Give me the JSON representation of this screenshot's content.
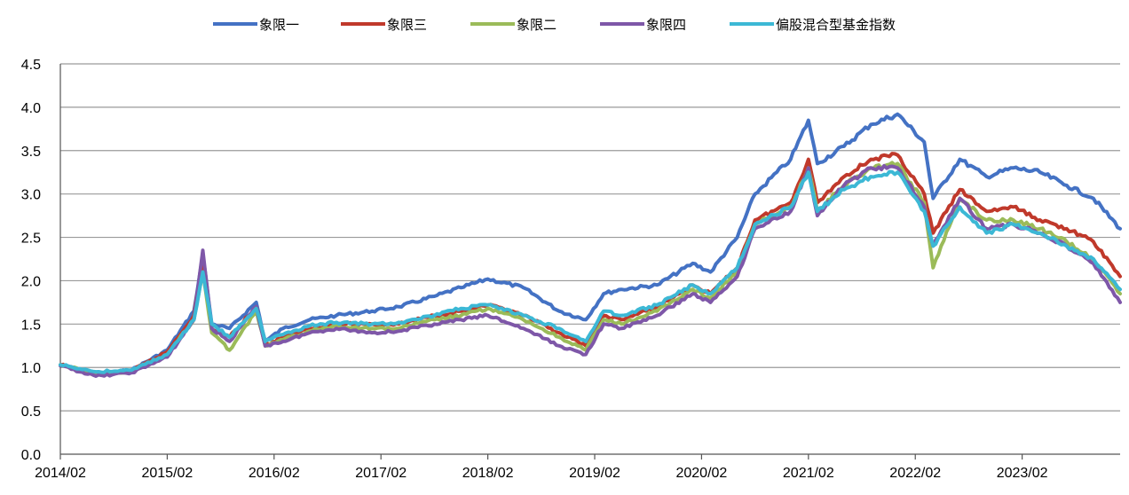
{
  "chart_data": {
    "type": "line",
    "title": "",
    "xlabel": "",
    "ylabel": "",
    "ylim": [
      0.0,
      4.5
    ],
    "yticks": [
      "0.0",
      "0.5",
      "1.0",
      "1.5",
      "2.0",
      "2.5",
      "3.0",
      "3.5",
      "4.0",
      "4.5"
    ],
    "xticks": [
      "2014/02",
      "2015/02",
      "2016/02",
      "2017/02",
      "2018/02",
      "2019/02",
      "2020/02",
      "2021/02",
      "2022/02",
      "2023/02"
    ],
    "xlim": [
      "2014/02",
      "2024/01"
    ],
    "grid": "horizontal",
    "legend_position": "top-center",
    "series": [
      {
        "name": "象限一",
        "color": "#4472C4",
        "points": [
          [
            "2014/02",
            1.03
          ],
          [
            "2014/06",
            0.92
          ],
          [
            "2014/10",
            0.97
          ],
          [
            "2015/02",
            1.2
          ],
          [
            "2015/05",
            1.65
          ],
          [
            "2015/06",
            2.3
          ],
          [
            "2015/07",
            1.5
          ],
          [
            "2015/09",
            1.45
          ],
          [
            "2015/12",
            1.75
          ],
          [
            "2016/01",
            1.3
          ],
          [
            "2016/03",
            1.45
          ],
          [
            "2016/06",
            1.55
          ],
          [
            "2016/09",
            1.6
          ],
          [
            "2017/01",
            1.65
          ],
          [
            "2017/04",
            1.7
          ],
          [
            "2017/08",
            1.82
          ],
          [
            "2017/11",
            1.92
          ],
          [
            "2018/02",
            2.02
          ],
          [
            "2018/06",
            1.92
          ],
          [
            "2018/10",
            1.65
          ],
          [
            "2019/01",
            1.55
          ],
          [
            "2019/03",
            1.85
          ],
          [
            "2019/05",
            1.9
          ],
          [
            "2019/09",
            1.95
          ],
          [
            "2020/01",
            2.2
          ],
          [
            "2020/03",
            2.1
          ],
          [
            "2020/06",
            2.5
          ],
          [
            "2020/08",
            3.0
          ],
          [
            "2020/12",
            3.4
          ],
          [
            "2021/02",
            3.85
          ],
          [
            "2021/03",
            3.35
          ],
          [
            "2021/06",
            3.55
          ],
          [
            "2021/09",
            3.8
          ],
          [
            "2021/12",
            3.92
          ],
          [
            "2022/03",
            3.6
          ],
          [
            "2022/04",
            2.95
          ],
          [
            "2022/07",
            3.4
          ],
          [
            "2022/10",
            3.2
          ],
          [
            "2023/01",
            3.3
          ],
          [
            "2023/04",
            3.25
          ],
          [
            "2023/07",
            3.1
          ],
          [
            "2023/10",
            2.95
          ],
          [
            "2024/01",
            2.6
          ]
        ]
      },
      {
        "name": "象限三",
        "color": "#C0392B",
        "points": [
          [
            "2014/02",
            1.03
          ],
          [
            "2014/06",
            0.92
          ],
          [
            "2014/10",
            0.96
          ],
          [
            "2015/02",
            1.18
          ],
          [
            "2015/05",
            1.6
          ],
          [
            "2015/06",
            2.25
          ],
          [
            "2015/07",
            1.45
          ],
          [
            "2015/09",
            1.35
          ],
          [
            "2015/12",
            1.7
          ],
          [
            "2016/01",
            1.25
          ],
          [
            "2016/03",
            1.35
          ],
          [
            "2016/06",
            1.45
          ],
          [
            "2016/09",
            1.5
          ],
          [
            "2017/01",
            1.5
          ],
          [
            "2017/04",
            1.5
          ],
          [
            "2017/08",
            1.6
          ],
          [
            "2017/11",
            1.65
          ],
          [
            "2018/02",
            1.72
          ],
          [
            "2018/06",
            1.6
          ],
          [
            "2018/10",
            1.4
          ],
          [
            "2019/01",
            1.25
          ],
          [
            "2019/03",
            1.6
          ],
          [
            "2019/05",
            1.55
          ],
          [
            "2019/09",
            1.7
          ],
          [
            "2020/01",
            1.95
          ],
          [
            "2020/03",
            1.85
          ],
          [
            "2020/06",
            2.15
          ],
          [
            "2020/08",
            2.7
          ],
          [
            "2020/12",
            2.9
          ],
          [
            "2021/02",
            3.4
          ],
          [
            "2021/03",
            2.9
          ],
          [
            "2021/06",
            3.2
          ],
          [
            "2021/09",
            3.4
          ],
          [
            "2021/12",
            3.45
          ],
          [
            "2022/03",
            3.0
          ],
          [
            "2022/04",
            2.55
          ],
          [
            "2022/07",
            3.05
          ],
          [
            "2022/10",
            2.8
          ],
          [
            "2023/01",
            2.85
          ],
          [
            "2023/04",
            2.7
          ],
          [
            "2023/07",
            2.6
          ],
          [
            "2023/10",
            2.45
          ],
          [
            "2024/01",
            2.05
          ]
        ]
      },
      {
        "name": "象限二",
        "color": "#9BBB59",
        "points": [
          [
            "2014/02",
            1.03
          ],
          [
            "2014/06",
            0.93
          ],
          [
            "2014/10",
            0.95
          ],
          [
            "2015/02",
            1.15
          ],
          [
            "2015/05",
            1.55
          ],
          [
            "2015/06",
            2.1
          ],
          [
            "2015/07",
            1.4
          ],
          [
            "2015/09",
            1.2
          ],
          [
            "2015/12",
            1.65
          ],
          [
            "2016/01",
            1.25
          ],
          [
            "2016/03",
            1.32
          ],
          [
            "2016/06",
            1.42
          ],
          [
            "2016/09",
            1.48
          ],
          [
            "2017/01",
            1.45
          ],
          [
            "2017/04",
            1.45
          ],
          [
            "2017/08",
            1.55
          ],
          [
            "2017/11",
            1.6
          ],
          [
            "2018/02",
            1.68
          ],
          [
            "2018/06",
            1.55
          ],
          [
            "2018/10",
            1.35
          ],
          [
            "2019/01",
            1.2
          ],
          [
            "2019/03",
            1.55
          ],
          [
            "2019/05",
            1.5
          ],
          [
            "2019/09",
            1.65
          ],
          [
            "2020/01",
            1.9
          ],
          [
            "2020/03",
            1.8
          ],
          [
            "2020/06",
            2.1
          ],
          [
            "2020/08",
            2.65
          ],
          [
            "2020/12",
            2.85
          ],
          [
            "2021/02",
            3.3
          ],
          [
            "2021/03",
            2.8
          ],
          [
            "2021/06",
            3.1
          ],
          [
            "2021/09",
            3.3
          ],
          [
            "2021/12",
            3.35
          ],
          [
            "2022/03",
            2.9
          ],
          [
            "2022/04",
            2.15
          ],
          [
            "2022/07",
            2.95
          ],
          [
            "2022/10",
            2.7
          ],
          [
            "2023/01",
            2.7
          ],
          [
            "2023/04",
            2.6
          ],
          [
            "2023/07",
            2.45
          ],
          [
            "2023/10",
            2.25
          ],
          [
            "2024/01",
            1.85
          ]
        ]
      },
      {
        "name": "象限四",
        "color": "#7E57A8",
        "points": [
          [
            "2014/02",
            1.02
          ],
          [
            "2014/06",
            0.9
          ],
          [
            "2014/10",
            0.94
          ],
          [
            "2015/02",
            1.12
          ],
          [
            "2015/05",
            1.55
          ],
          [
            "2015/06",
            2.35
          ],
          [
            "2015/07",
            1.45
          ],
          [
            "2015/09",
            1.3
          ],
          [
            "2015/12",
            1.7
          ],
          [
            "2016/01",
            1.25
          ],
          [
            "2016/03",
            1.3
          ],
          [
            "2016/06",
            1.4
          ],
          [
            "2016/09",
            1.45
          ],
          [
            "2017/01",
            1.4
          ],
          [
            "2017/04",
            1.42
          ],
          [
            "2017/08",
            1.5
          ],
          [
            "2017/11",
            1.55
          ],
          [
            "2018/02",
            1.6
          ],
          [
            "2018/06",
            1.45
          ],
          [
            "2018/10",
            1.25
          ],
          [
            "2019/01",
            1.15
          ],
          [
            "2019/03",
            1.5
          ],
          [
            "2019/05",
            1.45
          ],
          [
            "2019/09",
            1.6
          ],
          [
            "2020/01",
            1.85
          ],
          [
            "2020/03",
            1.75
          ],
          [
            "2020/06",
            2.05
          ],
          [
            "2020/08",
            2.6
          ],
          [
            "2020/12",
            2.8
          ],
          [
            "2021/02",
            3.3
          ],
          [
            "2021/03",
            2.75
          ],
          [
            "2021/06",
            3.1
          ],
          [
            "2021/09",
            3.3
          ],
          [
            "2021/12",
            3.3
          ],
          [
            "2022/03",
            2.85
          ],
          [
            "2022/04",
            2.4
          ],
          [
            "2022/07",
            2.95
          ],
          [
            "2022/10",
            2.6
          ],
          [
            "2023/01",
            2.65
          ],
          [
            "2023/04",
            2.55
          ],
          [
            "2023/07",
            2.4
          ],
          [
            "2023/10",
            2.2
          ],
          [
            "2024/01",
            1.75
          ]
        ]
      },
      {
        "name": "偏股混合型基金指数",
        "color": "#3CB8D5",
        "points": [
          [
            "2014/02",
            1.03
          ],
          [
            "2014/06",
            0.95
          ],
          [
            "2014/10",
            0.97
          ],
          [
            "2015/02",
            1.15
          ],
          [
            "2015/05",
            1.55
          ],
          [
            "2015/06",
            2.1
          ],
          [
            "2015/07",
            1.5
          ],
          [
            "2015/09",
            1.35
          ],
          [
            "2015/12",
            1.68
          ],
          [
            "2016/01",
            1.3
          ],
          [
            "2016/03",
            1.38
          ],
          [
            "2016/06",
            1.48
          ],
          [
            "2016/09",
            1.52
          ],
          [
            "2017/01",
            1.5
          ],
          [
            "2017/04",
            1.52
          ],
          [
            "2017/08",
            1.6
          ],
          [
            "2017/11",
            1.68
          ],
          [
            "2018/02",
            1.72
          ],
          [
            "2018/06",
            1.6
          ],
          [
            "2018/10",
            1.45
          ],
          [
            "2019/01",
            1.3
          ],
          [
            "2019/03",
            1.65
          ],
          [
            "2019/05",
            1.6
          ],
          [
            "2019/09",
            1.72
          ],
          [
            "2020/01",
            1.95
          ],
          [
            "2020/03",
            1.85
          ],
          [
            "2020/06",
            2.15
          ],
          [
            "2020/08",
            2.65
          ],
          [
            "2020/12",
            2.85
          ],
          [
            "2021/02",
            3.25
          ],
          [
            "2021/03",
            2.8
          ],
          [
            "2021/06",
            3.05
          ],
          [
            "2021/09",
            3.2
          ],
          [
            "2021/12",
            3.25
          ],
          [
            "2022/03",
            2.8
          ],
          [
            "2022/04",
            2.4
          ],
          [
            "2022/07",
            2.85
          ],
          [
            "2022/10",
            2.55
          ],
          [
            "2023/01",
            2.65
          ],
          [
            "2023/04",
            2.55
          ],
          [
            "2023/07",
            2.4
          ],
          [
            "2023/10",
            2.25
          ],
          [
            "2024/01",
            1.9
          ]
        ]
      }
    ]
  }
}
